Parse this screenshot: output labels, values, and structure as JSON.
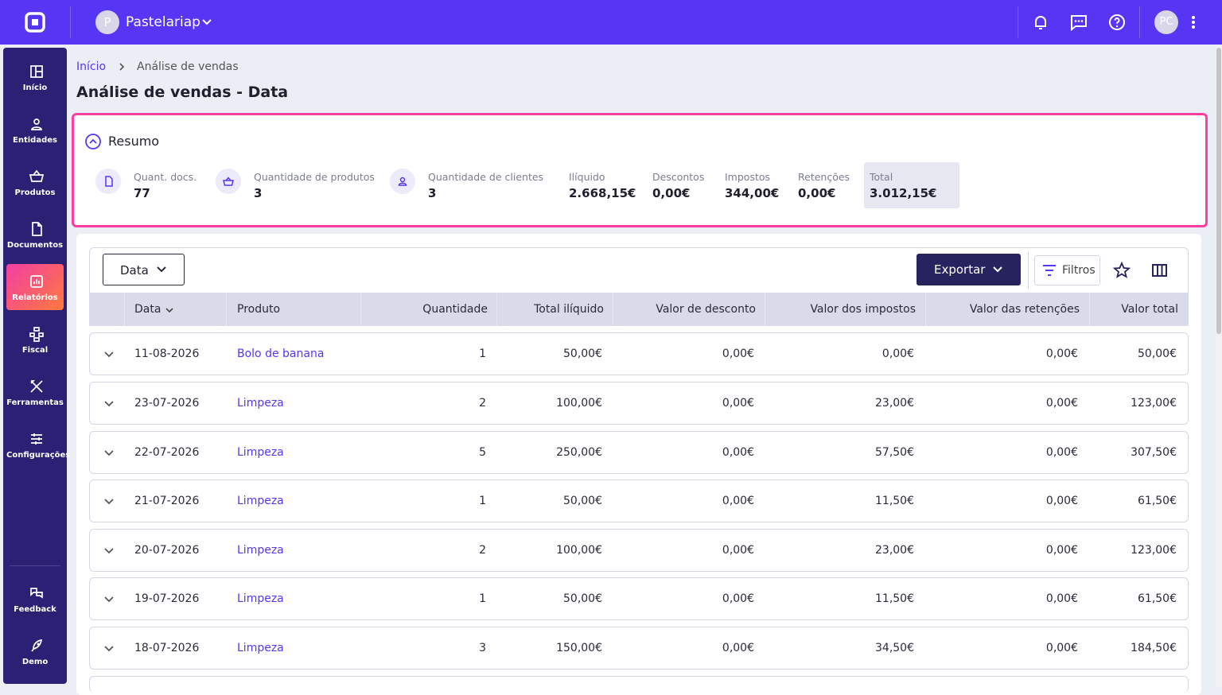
{
  "topbar": {
    "company_initial": "P",
    "company": "Pastelariap",
    "user_initials": "PC"
  },
  "sidebar": {
    "items": [
      "Início",
      "Entidades",
      "Produtos",
      "Documentos",
      "Relatórios",
      "Fiscal",
      "Ferramentas",
      "Configurações"
    ],
    "bottom_items": [
      "Feedback",
      "Demo"
    ]
  },
  "breadcrumb": {
    "home": "Início",
    "current": "Análise de vendas"
  },
  "page_title": "Análise de vendas - Data",
  "summary": {
    "title": "Resumo",
    "stats": [
      {
        "label": "Quant. docs.",
        "value": "77"
      },
      {
        "label": "Quantidade de produtos",
        "value": "3"
      },
      {
        "label": "Quantidade de clientes",
        "value": "3"
      },
      {
        "label": "Ilíquido",
        "value": "2.668,15€"
      },
      {
        "label": "Descontos",
        "value": "0,00€"
      },
      {
        "label": "Impostos",
        "value": "344,00€"
      },
      {
        "label": "Retenções",
        "value": "0,00€"
      },
      {
        "label": "Total",
        "value": "3.012,15€"
      }
    ]
  },
  "toolbar": {
    "group_by": "Data",
    "export": "Exportar",
    "filters": "Filtros"
  },
  "table": {
    "columns": [
      "Data",
      "Produto",
      "Quantidade",
      "Total ilíquido",
      "Valor de desconto",
      "Valor dos impostos",
      "Valor das retenções",
      "Valor total"
    ],
    "rows": [
      [
        "11-08-2026",
        "Bolo de banana",
        "1",
        "50,00€",
        "0,00€",
        "0,00€",
        "0,00€",
        "50,00€"
      ],
      [
        "23-07-2026",
        "Limpeza",
        "2",
        "100,00€",
        "0,00€",
        "23,00€",
        "0,00€",
        "123,00€"
      ],
      [
        "22-07-2026",
        "Limpeza",
        "5",
        "250,00€",
        "0,00€",
        "57,50€",
        "0,00€",
        "307,50€"
      ],
      [
        "21-07-2026",
        "Limpeza",
        "1",
        "50,00€",
        "0,00€",
        "11,50€",
        "0,00€",
        "61,50€"
      ],
      [
        "20-07-2026",
        "Limpeza",
        "2",
        "100,00€",
        "0,00€",
        "23,00€",
        "0,00€",
        "123,00€"
      ],
      [
        "19-07-2026",
        "Limpeza",
        "1",
        "50,00€",
        "0,00€",
        "11,50€",
        "0,00€",
        "61,50€"
      ],
      [
        "18-07-2026",
        "Limpeza",
        "3",
        "150,00€",
        "0,00€",
        "34,50€",
        "0,00€",
        "184,50€"
      ]
    ]
  }
}
